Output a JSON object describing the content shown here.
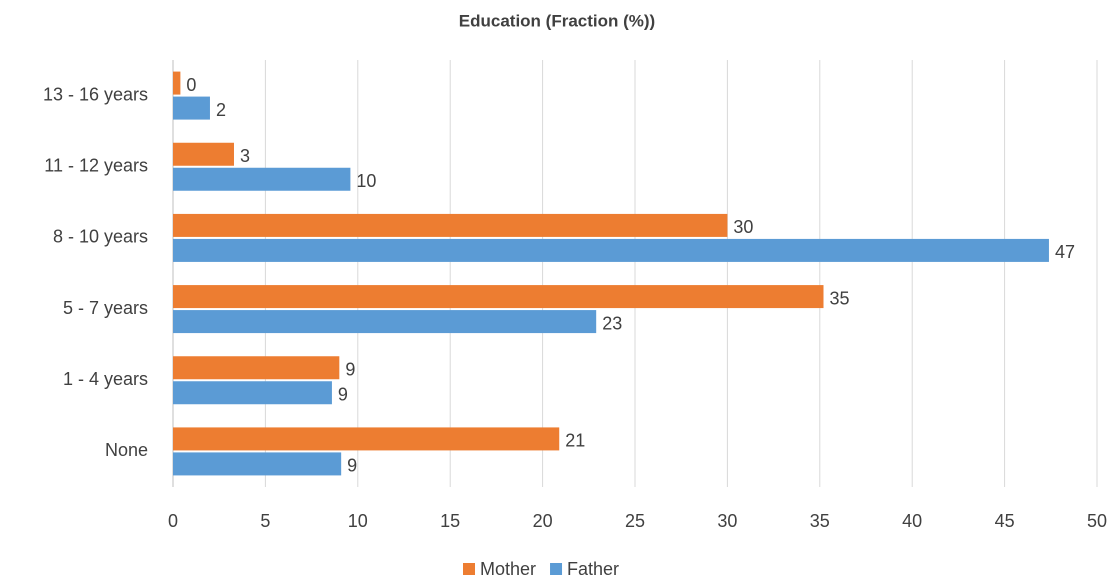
{
  "chart_data": {
    "type": "hbar",
    "title": "Education (Fraction (%))",
    "categories": [
      "None",
      "1 - 4 years",
      "5 - 7 years",
      "8 - 10 years",
      "11 - 12 years",
      "13 - 16 years"
    ],
    "series": [
      {
        "name": "Mother",
        "color": "#ed7d31",
        "values": [
          20.9,
          9.0,
          35.2,
          30.0,
          3.3,
          0.4
        ],
        "value_labels": [
          "21",
          "9",
          "35",
          "30",
          "3",
          "0"
        ]
      },
      {
        "name": "Father",
        "color": "#5b9bd5",
        "values": [
          9.1,
          8.6,
          22.9,
          47.4,
          9.6,
          2.0
        ],
        "value_labels": [
          "9",
          "9",
          "23",
          "47",
          "10",
          "2"
        ]
      }
    ],
    "xlim": [
      0,
      50
    ],
    "xticks": [
      0,
      5,
      10,
      15,
      20,
      25,
      30,
      35,
      40,
      45,
      50
    ],
    "grid": true,
    "legend": "bottom"
  }
}
